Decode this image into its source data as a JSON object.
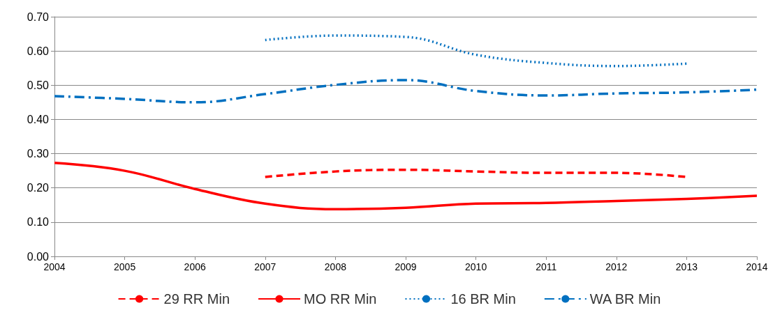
{
  "chart_data": {
    "type": "line",
    "x": [
      2004,
      2005,
      2006,
      2007,
      2008,
      2009,
      2010,
      2011,
      2012,
      2013,
      2014
    ],
    "xlim": [
      2004,
      2014
    ],
    "xticks": [
      2004,
      2005,
      2006,
      2007,
      2008,
      2009,
      2010,
      2011,
      2012,
      2013,
      2014
    ],
    "ylim": [
      0,
      0.7
    ],
    "yticks": [
      {
        "value": 0,
        "label": "0.00"
      },
      {
        "value": 0.1,
        "label": "0.10"
      },
      {
        "value": 0.2,
        "label": "0.20"
      },
      {
        "value": 0.3,
        "label": "0.30"
      },
      {
        "value": 0.4,
        "label": "0.40"
      },
      {
        "value": 0.5,
        "label": "0.50"
      },
      {
        "value": 0.6,
        "label": "0.60"
      },
      {
        "value": 0.7,
        "label": "0.70"
      }
    ],
    "grid": "y",
    "legend": "bottom",
    "marker": "none",
    "series": [
      {
        "name": "29 RR Min",
        "color": "#ff0000",
        "line_style": "dashed",
        "values": [
          null,
          null,
          null,
          0.232,
          0.248,
          0.253,
          0.248,
          0.244,
          0.244,
          0.232,
          null
        ]
      },
      {
        "name": "MO RR Min",
        "color": "#ff0000",
        "line_style": "solid",
        "values": [
          0.273,
          0.25,
          0.197,
          0.154,
          0.138,
          0.142,
          0.154,
          0.156,
          0.162,
          0.168,
          0.177
        ]
      },
      {
        "name": "16 BR Min",
        "color": "#0070c0",
        "line_style": "dotted",
        "values": [
          null,
          null,
          null,
          0.632,
          0.645,
          0.641,
          0.589,
          0.565,
          0.556,
          0.563,
          null
        ]
      },
      {
        "name": "WA BR Min",
        "color": "#0070c0",
        "line_style": "dashdot",
        "values": [
          0.468,
          0.46,
          0.45,
          0.474,
          0.501,
          0.515,
          0.483,
          0.47,
          0.476,
          0.479,
          0.487
        ]
      }
    ]
  }
}
